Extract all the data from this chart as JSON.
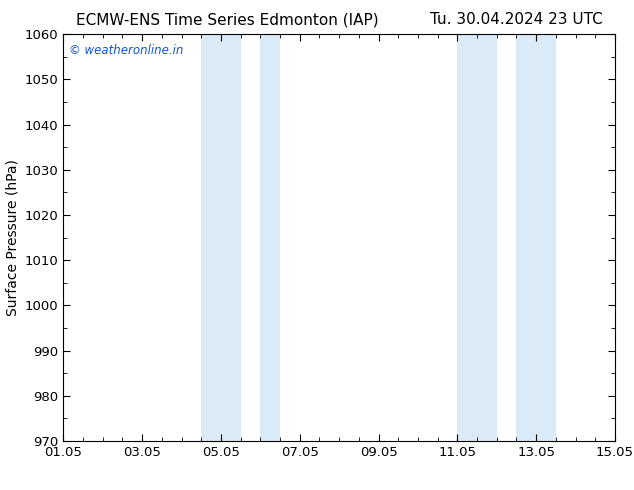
{
  "title_left": "ECMW-ENS Time Series Edmonton (IAP)",
  "title_right": "Tu. 30.04.2024 23 UTC",
  "ylabel": "Surface Pressure (hPa)",
  "ylim": [
    970,
    1060
  ],
  "yticks": [
    970,
    980,
    990,
    1000,
    1010,
    1020,
    1030,
    1040,
    1050,
    1060
  ],
  "xtick_labels": [
    "01.05",
    "03.05",
    "05.05",
    "07.05",
    "09.05",
    "11.05",
    "13.05",
    "15.05"
  ],
  "xtick_positions": [
    0,
    2,
    4,
    6,
    8,
    10,
    12,
    14
  ],
  "xmin": 0,
  "xmax": 14,
  "shaded_regions": [
    {
      "xstart": 3.5,
      "xend": 4.5
    },
    {
      "xstart": 5.0,
      "xend": 5.5
    },
    {
      "xstart": 10.0,
      "xend": 11.0
    },
    {
      "xstart": 11.5,
      "xend": 12.5
    }
  ],
  "shade_color": "#daeaf7",
  "watermark_text": "© weatheronline.in",
  "watermark_color": "#1155cc",
  "background_color": "#ffffff",
  "title_fontsize": 11,
  "tick_fontsize": 9.5,
  "ylabel_fontsize": 10
}
